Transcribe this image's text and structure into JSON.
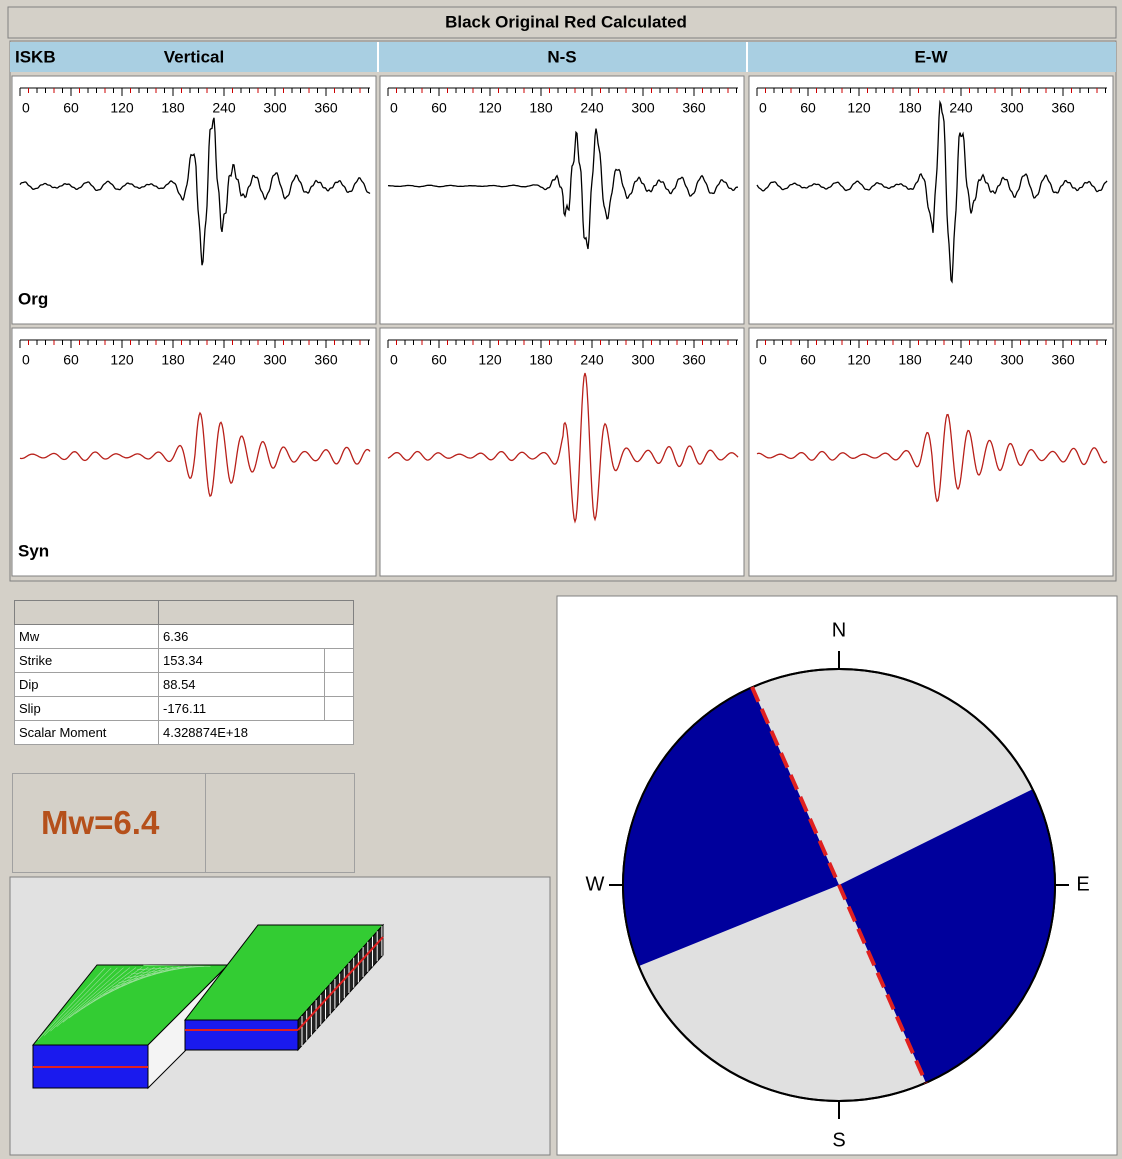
{
  "header": {
    "title": "Black Original Red Calculated"
  },
  "station": "ISKB",
  "components": [
    "Vertical",
    "N-S",
    "E-W"
  ],
  "time_ticks": [
    0,
    60,
    120,
    180,
    240,
    300,
    360
  ],
  "rows": [
    "Org",
    "Syn"
  ],
  "table": {
    "rows": [
      [
        "Mw",
        "6.36"
      ],
      [
        "Strike",
        "153.34"
      ],
      [
        "Dip",
        "88.54"
      ],
      [
        "Slip",
        "-176.11"
      ],
      [
        "Scalar Moment",
        "4.328874E+18"
      ]
    ]
  },
  "magnitude_label": "Mw=6.4",
  "beachball": {
    "directions": [
      "N",
      "E",
      "S",
      "W"
    ]
  }
}
